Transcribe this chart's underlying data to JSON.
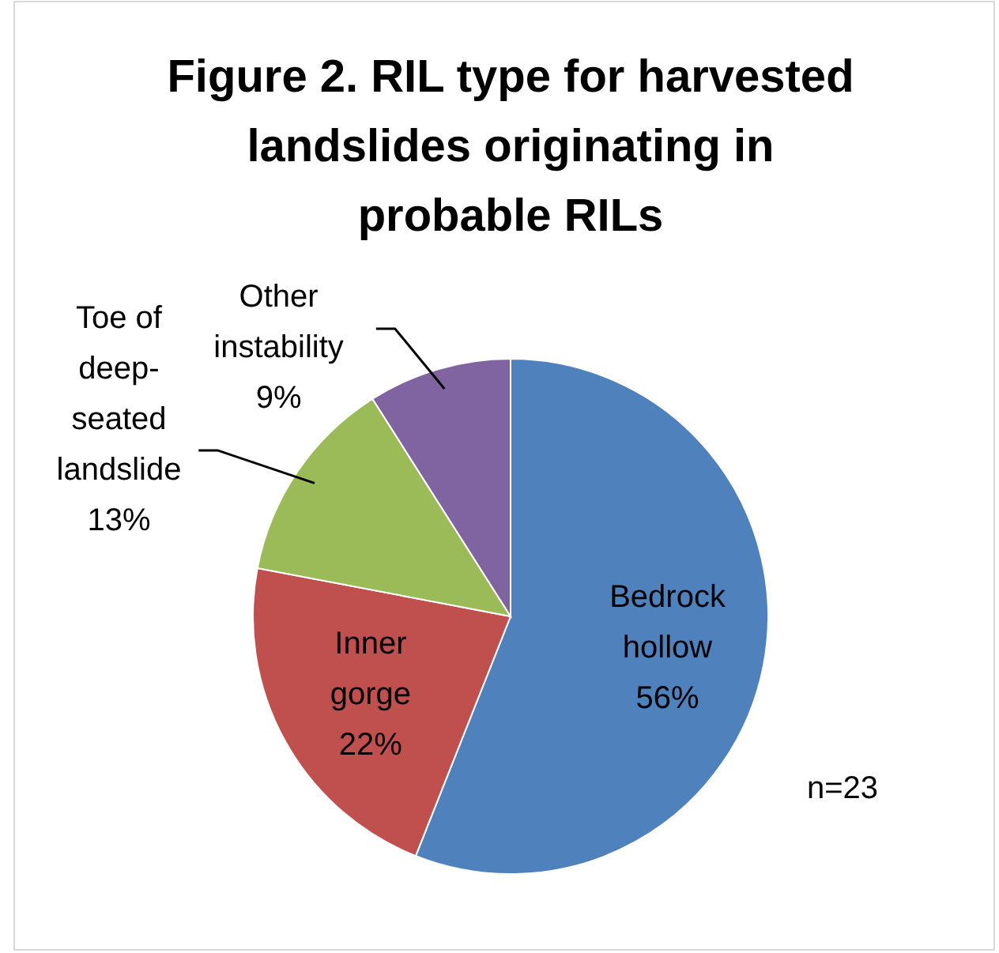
{
  "chart_data": {
    "type": "pie",
    "title": "Figure 2. RIL type for harvested landslides originating in probable RILs",
    "categories": [
      "Bedrock hollow",
      "Inner gorge",
      "Toe of deep-seated landslide",
      "Other instability"
    ],
    "values": [
      56,
      22,
      13,
      9
    ],
    "colors": [
      "#4f81bd",
      "#c0504d",
      "#9bbb59",
      "#8064a2"
    ],
    "value_labels": [
      "56%",
      "22%",
      "13%",
      "9%"
    ],
    "annotations": [
      "n=23"
    ]
  }
}
